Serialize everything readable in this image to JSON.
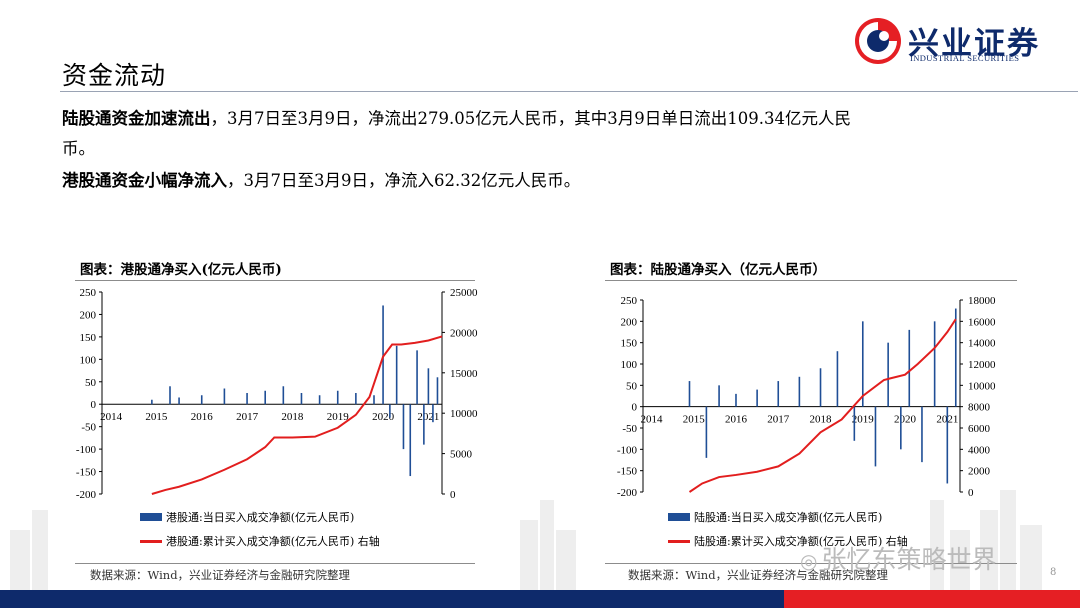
{
  "header": {
    "title": "资金流动",
    "logo_name": "兴业证券",
    "logo_sub": "INDUSTRIAL SECURITIES"
  },
  "paragraphs": {
    "p1_bold": "陆股通资金加速流出",
    "p1_rest": "，3月7日至3月9日，净流出279.05亿元人民币，其中3月9日单日流出109.34亿元人民",
    "p1_cont": "币。",
    "p2_bold": "港股通资金小幅净流入",
    "p2_rest": "，3月7日至3月9日，净流入62.32亿元人民币。"
  },
  "colors": {
    "bar": "#1f4e96",
    "line": "#e21e1e",
    "brand_blue": "#0e2a6b",
    "brand_red": "#e51f24"
  },
  "chart_data": [
    {
      "type": "bar",
      "title": "图表：港股通净买入(亿元人民币)",
      "x_ticks": [
        "2014",
        "2015",
        "2016",
        "2017",
        "2018",
        "2019",
        "2020",
        "2021"
      ],
      "y_left_ticks": [
        250,
        200,
        150,
        100,
        50,
        0,
        -50,
        -100,
        -150,
        -200
      ],
      "y_right_ticks": [
        25000,
        20000,
        15000,
        10000,
        5000,
        0
      ],
      "ylim": [
        -200,
        250
      ],
      "y2lim": [
        0,
        25000
      ],
      "series": [
        {
          "name": "港股通:当日买入成交净额(亿元人民币)",
          "type": "bar",
          "x": [
            2014.9,
            2015.3,
            2015.5,
            2016.0,
            2016.5,
            2017.0,
            2017.4,
            2017.8,
            2018.2,
            2018.6,
            2019.0,
            2019.4,
            2019.8,
            2020.0,
            2020.15,
            2020.3,
            2020.45,
            2020.6,
            2020.75,
            2020.9,
            2021.0,
            2021.1,
            2021.2
          ],
          "values": [
            10,
            40,
            15,
            20,
            35,
            25,
            30,
            40,
            25,
            20,
            30,
            25,
            20,
            220,
            -30,
            130,
            -100,
            -160,
            120,
            -90,
            80,
            -40,
            60
          ]
        },
        {
          "name": "港股通:累计买入成交净额(亿元人民币) 右轴",
          "type": "line",
          "x": [
            2014.9,
            2015.2,
            2015.5,
            2016.0,
            2016.5,
            2017.0,
            2017.4,
            2017.6,
            2018.0,
            2018.5,
            2019.0,
            2019.4,
            2019.7,
            2020.0,
            2020.2,
            2020.4,
            2020.7,
            2021.0,
            2021.3
          ],
          "values": [
            0,
            500,
            900,
            1800,
            3000,
            4300,
            5800,
            7000,
            7000,
            7100,
            8200,
            9800,
            12000,
            17000,
            18500,
            18500,
            18700,
            19000,
            19500
          ]
        }
      ],
      "legend": [
        "港股通:当日买入成交净额(亿元人民币)",
        "港股通:累计买入成交净额(亿元人民币) 右轴"
      ],
      "source": "数据来源：Wind，兴业证券经济与金融研究院整理"
    },
    {
      "type": "bar",
      "title": "图表：陆股通净买入（亿元人民币）",
      "x_ticks": [
        "2014",
        "2015",
        "2016",
        "2017",
        "2018",
        "2019",
        "2020",
        "2021"
      ],
      "y_left_ticks": [
        250,
        200,
        150,
        100,
        50,
        0,
        -50,
        -100,
        -150,
        -200
      ],
      "y_right_ticks": [
        18000,
        16000,
        14000,
        12000,
        10000,
        8000,
        6000,
        4000,
        2000,
        0
      ],
      "ylim": [
        -200,
        250
      ],
      "y2lim": [
        0,
        18000
      ],
      "series": [
        {
          "name": "陆股通:当日买入成交净额(亿元人民币)",
          "type": "bar",
          "x": [
            2014.9,
            2015.3,
            2015.6,
            2016.0,
            2016.5,
            2017.0,
            2017.5,
            2018.0,
            2018.4,
            2018.8,
            2019.0,
            2019.3,
            2019.6,
            2019.9,
            2020.1,
            2020.4,
            2020.7,
            2021.0,
            2021.2
          ],
          "values": [
            60,
            -120,
            50,
            30,
            40,
            60,
            70,
            90,
            130,
            -80,
            200,
            -140,
            150,
            -100,
            180,
            -130,
            200,
            -180,
            230
          ]
        },
        {
          "name": "陆股通:累计买入成交净额(亿元人民币) 右轴",
          "type": "line",
          "x": [
            2014.9,
            2015.2,
            2015.6,
            2016.0,
            2016.5,
            2017.0,
            2017.5,
            2018.0,
            2018.5,
            2019.0,
            2019.5,
            2020.0,
            2020.3,
            2020.7,
            2021.0,
            2021.2
          ],
          "values": [
            0,
            800,
            1400,
            1600,
            1900,
            2400,
            3600,
            5600,
            6800,
            9000,
            10500,
            11000,
            12000,
            13500,
            15000,
            16200
          ]
        }
      ],
      "legend": [
        "陆股通:当日买入成交净额(亿元人民币)",
        "陆股通:累计买入成交净额(亿元人民币) 右轴"
      ],
      "source": "数据来源：Wind，兴业证券经济与金融研究院整理"
    }
  ],
  "watermark": "张忆东策略世界",
  "page_number": "8"
}
